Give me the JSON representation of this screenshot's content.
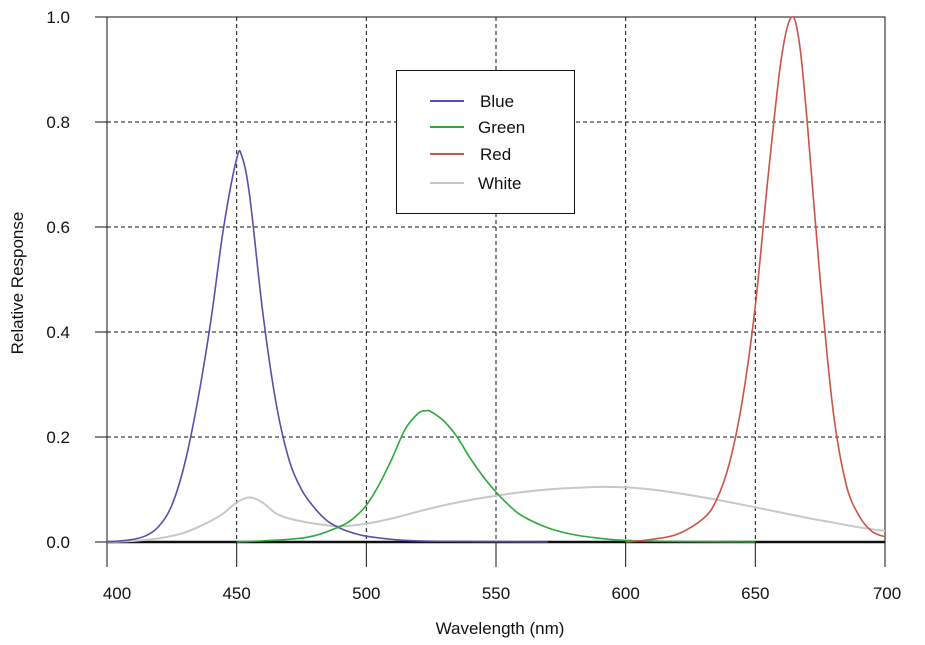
{
  "chart_data": {
    "type": "line",
    "title": "",
    "xlabel": "Wavelength (nm)",
    "ylabel": "Relative Response",
    "xlim": [
      400,
      700
    ],
    "ylim": [
      0,
      1.0
    ],
    "xticks": [
      400,
      450,
      500,
      550,
      600,
      650,
      700
    ],
    "xtick_labels": [
      "400",
      "450",
      "500",
      "550",
      "600",
      "650",
      "700"
    ],
    "yticks": [
      0,
      0.2,
      0.4,
      0.6,
      0.8,
      1.0
    ],
    "ytick_labels": [
      "0.0",
      "0.2",
      "0.4",
      "0.6",
      "0.8",
      "1.0"
    ],
    "grid": true,
    "legend_position": "top-center",
    "series": [
      {
        "name": "Blue",
        "color": "#5a4fa8",
        "x": [
          400,
          405,
          410,
          415,
          420,
          425,
          430,
          435,
          440,
          445,
          450,
          452,
          455,
          460,
          465,
          470,
          475,
          480,
          485,
          490,
          495,
          500,
          510,
          520,
          540,
          570
        ],
        "y": [
          0,
          0.002,
          0.005,
          0.012,
          0.03,
          0.07,
          0.15,
          0.27,
          0.42,
          0.6,
          0.73,
          0.735,
          0.66,
          0.44,
          0.27,
          0.16,
          0.1,
          0.065,
          0.04,
          0.026,
          0.017,
          0.011,
          0.005,
          0.002,
          0.001,
          0
        ]
      },
      {
        "name": "Green",
        "color": "#2aaa3a",
        "x": [
          450,
          470,
          480,
          490,
          495,
          500,
          505,
          510,
          515,
          520,
          523,
          525,
          530,
          535,
          540,
          545,
          550,
          555,
          560,
          570,
          580,
          590,
          600,
          620,
          650
        ],
        "y": [
          0,
          0.005,
          0.012,
          0.03,
          0.045,
          0.07,
          0.11,
          0.16,
          0.215,
          0.245,
          0.25,
          0.248,
          0.23,
          0.2,
          0.16,
          0.125,
          0.095,
          0.07,
          0.05,
          0.027,
          0.014,
          0.007,
          0.003,
          0.001,
          0
        ]
      },
      {
        "name": "Red",
        "color": "#c9544a",
        "x": [
          600,
          610,
          620,
          630,
          635,
          640,
          645,
          650,
          655,
          660,
          664,
          667,
          670,
          675,
          680,
          685,
          690,
          695,
          700
        ],
        "y": [
          0,
          0.005,
          0.015,
          0.045,
          0.08,
          0.15,
          0.27,
          0.45,
          0.7,
          0.92,
          1.0,
          0.95,
          0.8,
          0.5,
          0.25,
          0.11,
          0.05,
          0.02,
          0.01
        ]
      },
      {
        "name": "White",
        "color": "#c8c8c8",
        "x": [
          400,
          410,
          420,
          430,
          440,
          445,
          450,
          455,
          460,
          465,
          470,
          480,
          490,
          500,
          510,
          520,
          530,
          540,
          550,
          560,
          570,
          580,
          590,
          600,
          610,
          620,
          630,
          640,
          650,
          660,
          670,
          680,
          690,
          700
        ],
        "y": [
          0,
          0.002,
          0.007,
          0.018,
          0.04,
          0.055,
          0.075,
          0.085,
          0.075,
          0.055,
          0.045,
          0.035,
          0.03,
          0.035,
          0.045,
          0.058,
          0.07,
          0.08,
          0.088,
          0.095,
          0.1,
          0.103,
          0.105,
          0.104,
          0.1,
          0.093,
          0.085,
          0.076,
          0.066,
          0.056,
          0.046,
          0.037,
          0.028,
          0.021
        ]
      }
    ]
  }
}
